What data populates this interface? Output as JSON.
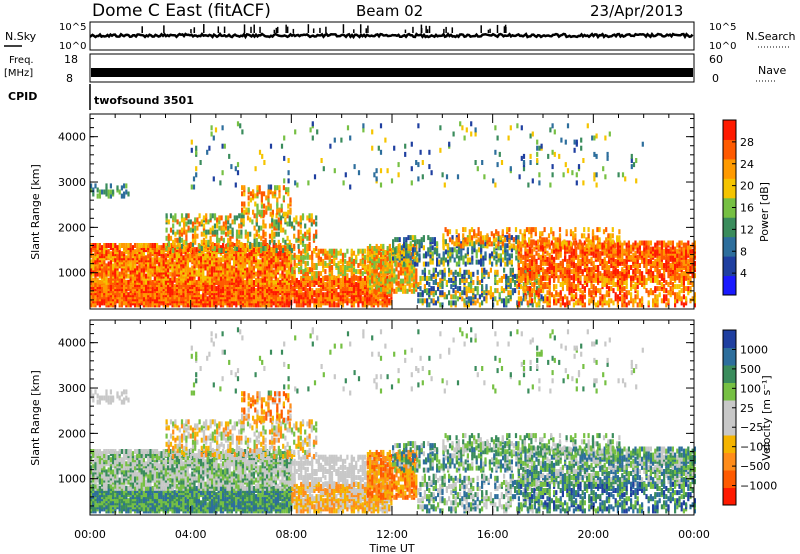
{
  "header": {
    "title": "Dome C East (fitACF)",
    "beam": "Beam 02",
    "date": "23/Apr/2013"
  },
  "top_panels": {
    "nsky_label": "N.Sky",
    "nsky_ticks": [
      "10^5",
      "10^0"
    ],
    "nsearch_label": "N.Search",
    "nsearch_ticks": [
      "10^5",
      "10^0"
    ],
    "freq_label_1": "Freq.",
    "freq_label_2": "[MHz]",
    "freq_ticks": [
      "18",
      "8"
    ],
    "nave_label": "Nave",
    "nave_ticks": [
      "60",
      "0"
    ],
    "cpid_label": "CPID",
    "cpid_value": "twofsound 3501"
  },
  "colors": {
    "power_scale": [
      "#1a1aff",
      "#1f3fa0",
      "#2d6e9c",
      "#3a8c5c",
      "#76c043",
      "#f5c400",
      "#ff9a00",
      "#ff5a00",
      "#ff1a00"
    ],
    "velocity_scale": [
      "#ff1a00",
      "#ff5a00",
      "#ff8c1a",
      "#f5b400",
      "#c8c8c8",
      "#c8c8c8",
      "#76c043",
      "#3a8c5c",
      "#2d6e9c",
      "#1f3fa0"
    ]
  },
  "chart_data": [
    {
      "type": "heatmap",
      "name": "power-panel",
      "ylabel": "Slant Range [km]",
      "yticks": [
        "4000",
        "3000",
        "2000",
        "1000"
      ],
      "ylim": [
        200,
        4500
      ],
      "xlim": [
        0,
        24
      ],
      "colorbar_label": "Power [dB]",
      "colorbar_ticks": [
        "28",
        "24",
        "20",
        "16",
        "12",
        "8",
        "4"
      ],
      "colorbar_range": [
        0,
        32
      ]
    },
    {
      "type": "heatmap",
      "name": "velocity-panel",
      "ylabel": "Slant Range [km]",
      "yticks": [
        "4000",
        "3000",
        "2000",
        "1000"
      ],
      "ylim": [
        200,
        4500
      ],
      "xlim": [
        0,
        24
      ],
      "xlabel": "Time UT",
      "xticks": [
        "00:00",
        "04:00",
        "08:00",
        "12:00",
        "16:00",
        "20:00",
        "00:00"
      ],
      "colorbar_label": "Velocity [m s⁻¹]",
      "colorbar_ticks": [
        "1000",
        "500",
        "100",
        "25",
        "−25",
        "−100",
        "−500",
        "−1000"
      ]
    }
  ]
}
